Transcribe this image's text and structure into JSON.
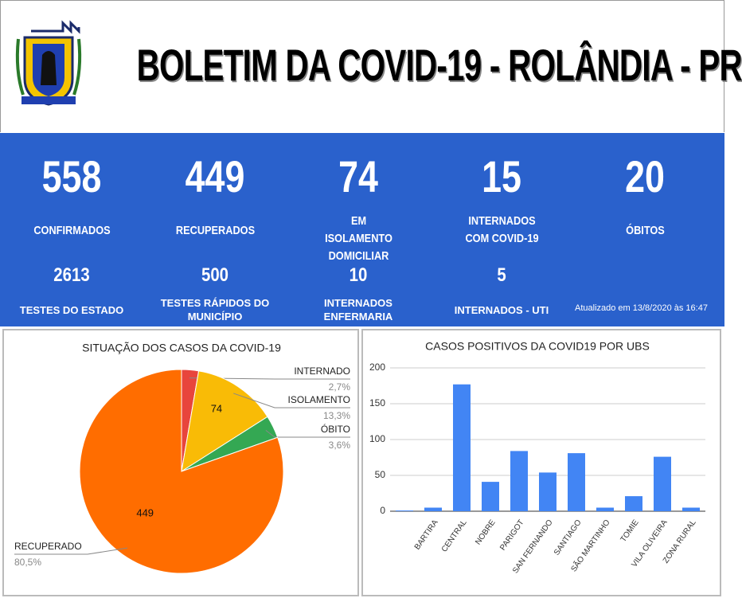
{
  "header": {
    "title": "BOLETIM DA COVID-19 - ROLÂNDIA - PR"
  },
  "stats": [
    {
      "value": 558,
      "label": "CONFIRMADOS"
    },
    {
      "value": 449,
      "label": "RECUPERADOS"
    },
    {
      "value": 74,
      "label": "EM ISOLAMENTO DOMICILIAR"
    },
    {
      "value": 15,
      "label": "INTERNADOS COM COVID-19"
    },
    {
      "value": 20,
      "label": "ÓBITOS"
    }
  ],
  "secondary_stats": [
    {
      "value": 2613,
      "label": "TESTES DO ESTADO"
    },
    {
      "value": 500,
      "label": "TESTES RÁPIDOS DO MUNICÍPIO"
    },
    {
      "value": 10,
      "label": "INTERNADOS ENFERMARIA"
    },
    {
      "value": 5,
      "label": "INTERNADOS - UTI"
    }
  ],
  "updated": "Atualizado em 13/8/2020 às 16:47",
  "chart_data": [
    {
      "type": "pie",
      "title": "SITUAÇÃO DOS CASOS DA COVID-19",
      "categories": [
        "INTERNADO",
        "ISOLAMENTO",
        "ÓBITO",
        "RECUPERADO"
      ],
      "values": [
        2.7,
        13.3,
        3.6,
        80.5
      ],
      "value_labels": [
        "2,7%",
        "13,3%",
        "3,6%",
        "80,5%"
      ],
      "slice_labels": [
        null,
        74,
        null,
        449
      ],
      "colors": [
        "#e8453c",
        "#f9bb06",
        "#34a853",
        "#ff6d00"
      ]
    },
    {
      "type": "bar",
      "title": "CASOS POSITIVOS DA COVID19 POR UBS",
      "categories": [
        null,
        "BARTIRA",
        "CENTRAL",
        "NOBRE",
        "PARIGOT",
        "SAN FERNANDO",
        "SANTIAGO",
        "SÃO MARTINHO",
        "TOMIE",
        "VILA OLIVEIRA",
        "ZONA RURAL"
      ],
      "values": [
        1,
        5,
        177,
        41,
        84,
        54,
        81,
        5,
        21,
        76,
        5
      ],
      "color": "#4285f4",
      "ylim": [
        0,
        200
      ],
      "yticks": [
        0,
        50,
        100,
        150,
        200
      ],
      "grid": true
    }
  ]
}
